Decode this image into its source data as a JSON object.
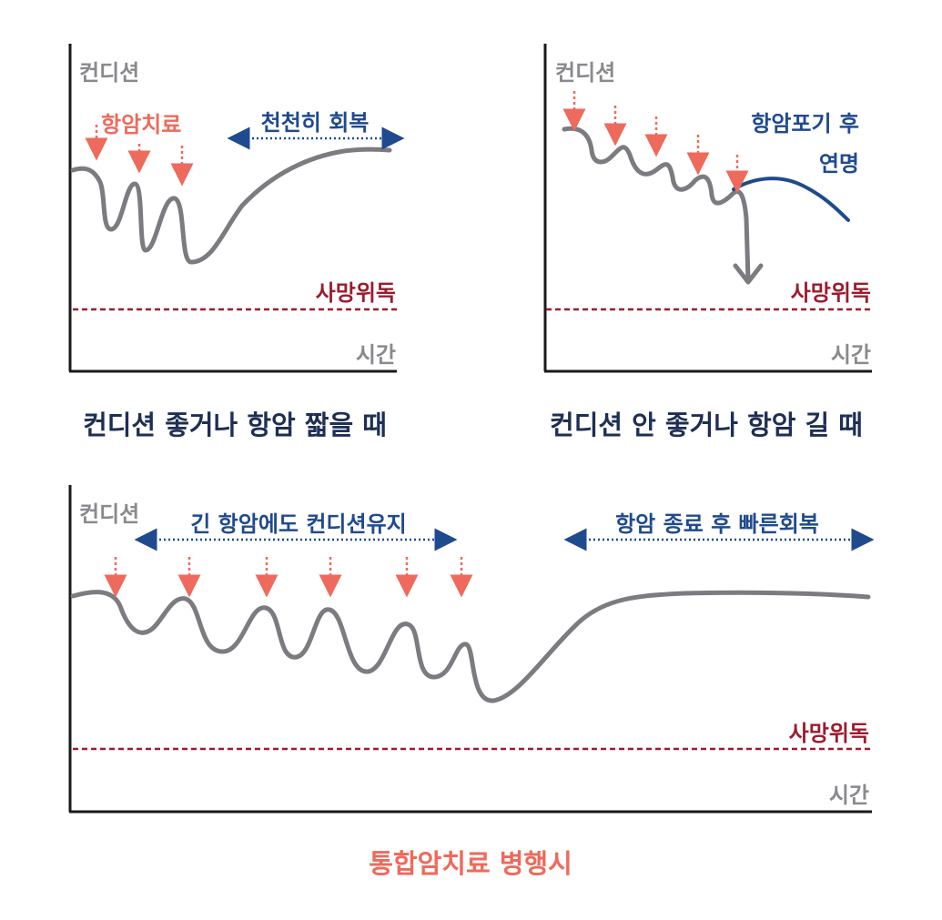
{
  "colors": {
    "axis": "#1a1a1a",
    "curve": "#7b7b80",
    "arrow_red": "#ee6a5c",
    "death_line": "#9c1b2e",
    "blue": "#1f4a8e",
    "caption": "#1e2f55"
  },
  "panel1": {
    "y_label": "컨디션",
    "x_label": "시간",
    "treatment_label": "항암치료",
    "recovery_label": "천천히 회복",
    "death_label": "사망위독",
    "caption": "컨디션 좋거나 항암 짧을 때"
  },
  "panel2": {
    "y_label": "컨디션",
    "x_label": "시간",
    "stop_label_line1": "항암포기 후",
    "stop_label_line2": "연명",
    "death_label": "사망위독",
    "caption": "컨디션 안 좋거나 항암 길 때"
  },
  "panel3": {
    "y_label": "컨디션",
    "x_label": "시간",
    "maintain_label": "긴 항암에도 컨디션유지",
    "recovery_label": "항암 종료 후 빠른회복",
    "death_label": "사망위독",
    "caption": "통합암치료 병행시"
  }
}
